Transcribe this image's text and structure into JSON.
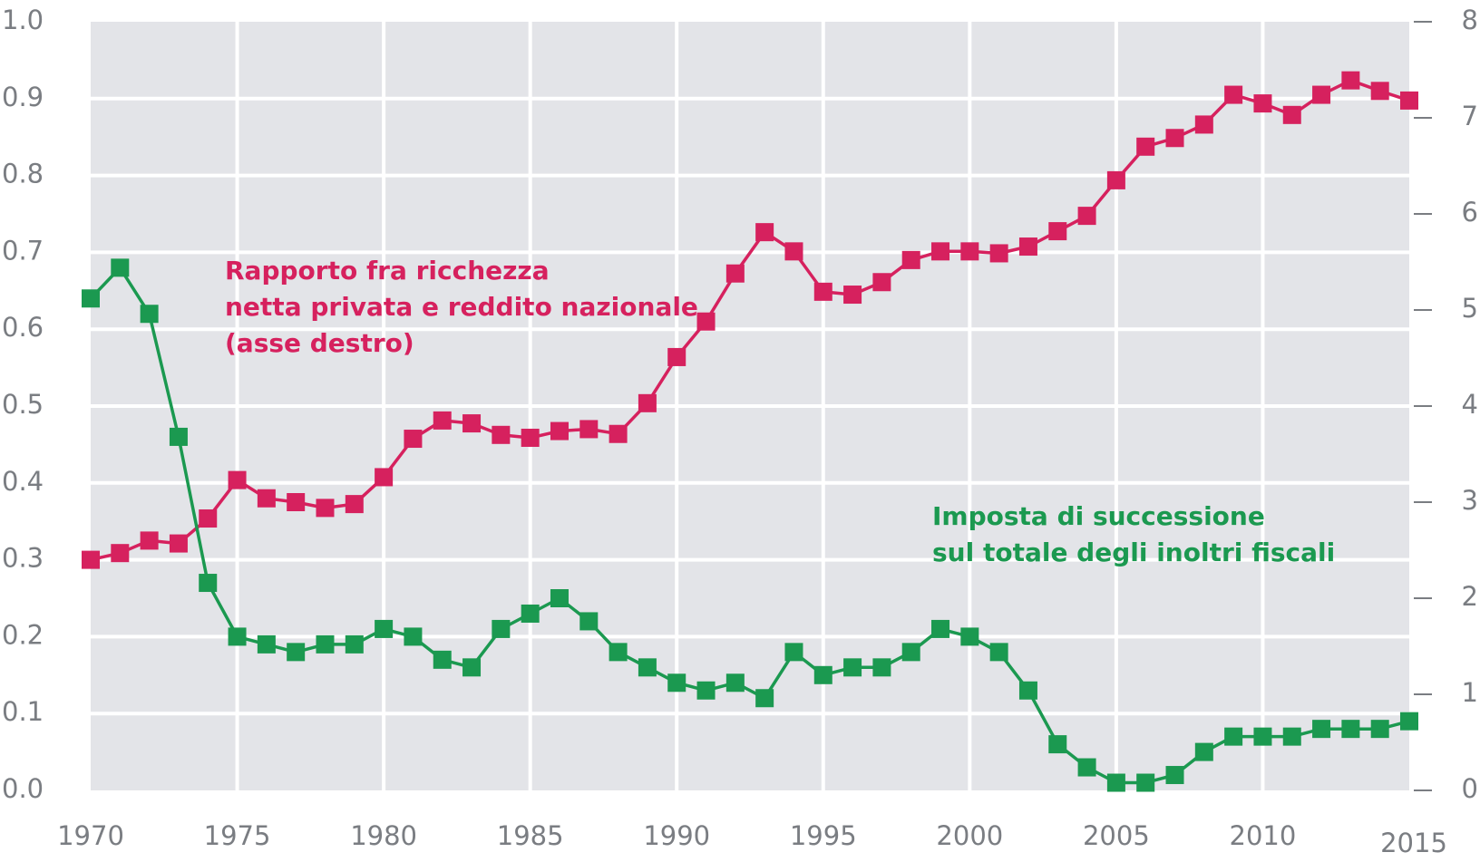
{
  "chart_data": {
    "type": "line",
    "title": "",
    "xlabel": "",
    "x": [
      1970,
      1971,
      1972,
      1973,
      1974,
      1975,
      1976,
      1977,
      1978,
      1979,
      1980,
      1981,
      1982,
      1983,
      1984,
      1985,
      1986,
      1987,
      1988,
      1989,
      1990,
      1991,
      1992,
      1993,
      1994,
      1995,
      1996,
      1997,
      1998,
      1999,
      2000,
      2001,
      2002,
      2003,
      2004,
      2005,
      2006,
      2007,
      2008,
      2009,
      2010,
      2011,
      2012,
      2013,
      2014,
      2015
    ],
    "x_ticks": [
      "1970",
      "1975",
      "1980",
      "1985",
      "1990",
      "1995",
      "2000",
      "2005",
      "2010",
      "2015"
    ],
    "xlim": [
      1970,
      2015
    ],
    "y_left": {
      "lim": [
        0,
        1.0
      ],
      "ticks": [
        "0.0",
        "0.1",
        "0.2",
        "0.3",
        "0.4",
        "0.5",
        "0.6",
        "0.7",
        "0.8",
        "0.9",
        "1.0"
      ]
    },
    "y_right": {
      "lim": [
        0,
        8
      ],
      "ticks": [
        "0",
        "1",
        "2",
        "3",
        "4",
        "5",
        "6",
        "7",
        "8"
      ]
    },
    "grid": true,
    "series": [
      {
        "name": "Rapporto fra ricchezza netta privata e reddito nazionale (asse destro)",
        "axis": "right",
        "color": "#d6215e",
        "values": [
          2.4,
          2.47,
          2.6,
          2.57,
          2.83,
          3.23,
          3.04,
          3.0,
          2.94,
          2.98,
          3.26,
          3.66,
          3.85,
          3.82,
          3.7,
          3.67,
          3.74,
          3.76,
          3.71,
          4.03,
          4.51,
          4.88,
          5.38,
          5.81,
          5.61,
          5.19,
          5.16,
          5.29,
          5.52,
          5.61,
          5.61,
          5.59,
          5.66,
          5.82,
          5.98,
          6.35,
          6.7,
          6.79,
          6.93,
          7.24,
          7.15,
          7.03,
          7.24,
          7.39,
          7.28,
          7.18
        ]
      },
      {
        "name": "Imposta di successione sul totale degli inoltri fiscali",
        "axis": "left",
        "color": "#1b9950",
        "values": [
          0.64,
          0.68,
          0.62,
          0.46,
          0.27,
          0.2,
          0.19,
          0.18,
          0.19,
          0.19,
          0.21,
          0.2,
          0.17,
          0.16,
          0.21,
          0.23,
          0.25,
          0.22,
          0.18,
          0.16,
          0.14,
          0.13,
          0.14,
          0.12,
          0.18,
          0.15,
          0.16,
          0.16,
          0.18,
          0.21,
          0.2,
          0.18,
          0.13,
          0.06,
          0.03,
          0.01,
          0.01,
          0.02,
          0.05,
          0.07,
          0.07,
          0.07,
          0.08,
          0.08,
          0.08,
          0.09
        ]
      }
    ],
    "annotations": [
      {
        "series": 0,
        "lines": [
          "Rapporto fra ricchezza",
          "netta privata e reddito nazionale",
          "(asse destro)"
        ]
      },
      {
        "series": 1,
        "lines": [
          "Imposta di successione",
          "sul totale degli inoltri fiscali"
        ]
      }
    ]
  }
}
